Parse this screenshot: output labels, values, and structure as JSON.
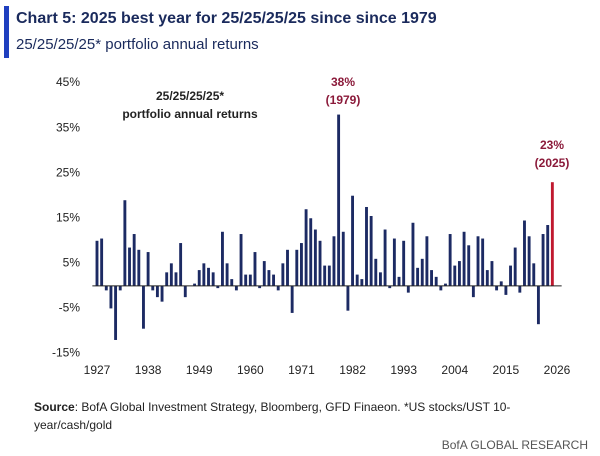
{
  "chart_data": {
    "type": "bar",
    "title": "Chart 5: 2025 best year for 25/25/25/25 since since 1979",
    "subtitle": "25/25/25/25* portfolio annual returns",
    "inner_label": [
      "25/25/25/25*",
      "portfolio annual returns"
    ],
    "annotations": [
      {
        "lines": [
          "38%",
          "(1979)"
        ]
      },
      {
        "lines": [
          "23%",
          "(2025)"
        ]
      }
    ],
    "source_label": "Source",
    "source": ": BofA Global Investment Strategy, Bloomberg, GFD Finaeon. *US stocks/UST 10-",
    "source_line2": "year/cash/gold",
    "footer": "BofA GLOBAL RESEARCH",
    "x": [
      1927,
      1928,
      1929,
      1930,
      1931,
      1932,
      1933,
      1934,
      1935,
      1936,
      1937,
      1938,
      1939,
      1940,
      1941,
      1942,
      1943,
      1944,
      1945,
      1946,
      1947,
      1948,
      1949,
      1950,
      1951,
      1952,
      1953,
      1954,
      1955,
      1956,
      1957,
      1958,
      1959,
      1960,
      1961,
      1962,
      1963,
      1964,
      1965,
      1966,
      1967,
      1968,
      1969,
      1970,
      1971,
      1972,
      1973,
      1974,
      1975,
      1976,
      1977,
      1978,
      1979,
      1980,
      1981,
      1982,
      1983,
      1984,
      1985,
      1986,
      1987,
      1988,
      1989,
      1990,
      1991,
      1992,
      1993,
      1994,
      1995,
      1996,
      1997,
      1998,
      1999,
      2000,
      2001,
      2002,
      2003,
      2004,
      2005,
      2006,
      2007,
      2008,
      2009,
      2010,
      2011,
      2012,
      2013,
      2014,
      2015,
      2016,
      2017,
      2018,
      2019,
      2020,
      2021,
      2022,
      2023,
      2024,
      2025
    ],
    "values": [
      10,
      10.5,
      -1,
      -5,
      -12,
      -1,
      19,
      8.5,
      11.5,
      8,
      -9.5,
      7.5,
      -1,
      -2.5,
      -3.5,
      3,
      5,
      3,
      9.5,
      -2.5,
      0,
      0.5,
      3.5,
      5,
      4,
      3,
      -0.5,
      12,
      5,
      1.5,
      -1,
      11.5,
      2.5,
      2.5,
      7.5,
      -0.5,
      5.5,
      3.5,
      2.5,
      -1,
      5,
      8,
      -6,
      8,
      9.5,
      17,
      15,
      12.5,
      10,
      4.5,
      4.5,
      11,
      38,
      12,
      -5.5,
      20,
      2.5,
      1.5,
      17.5,
      15.5,
      6,
      3,
      12.5,
      -0.5,
      10.5,
      2,
      10,
      -1.5,
      14,
      4,
      6,
      11,
      3.5,
      2,
      -1,
      0.5,
      11.5,
      4.5,
      5.5,
      12,
      9,
      -2.5,
      11,
      10.5,
      3.5,
      5.5,
      -1,
      1,
      -2,
      4.5,
      8.5,
      -1.5,
      14.5,
      11,
      5,
      -8.5,
      11.5,
      13.5,
      23
    ],
    "color": "#1c2a63",
    "highlight_color": "#c0192f",
    "highlight_x": 2025,
    "xlim": [
      1926,
      2027
    ],
    "xticks": [
      1927,
      1938,
      1949,
      1960,
      1971,
      1982,
      1993,
      2004,
      2015,
      2026
    ],
    "ylim": [
      -16,
      47
    ],
    "yticks": [
      {
        "value": 45,
        "label": "45%"
      },
      {
        "value": 35,
        "label": "35%"
      },
      {
        "value": 25,
        "label": "25%"
      },
      {
        "value": 15,
        "label": "15%"
      },
      {
        "value": 5,
        "label": "5%"
      },
      {
        "value": -5,
        "label": "-5%"
      },
      {
        "value": -15,
        "label": "-15%"
      }
    ],
    "grid": false
  }
}
